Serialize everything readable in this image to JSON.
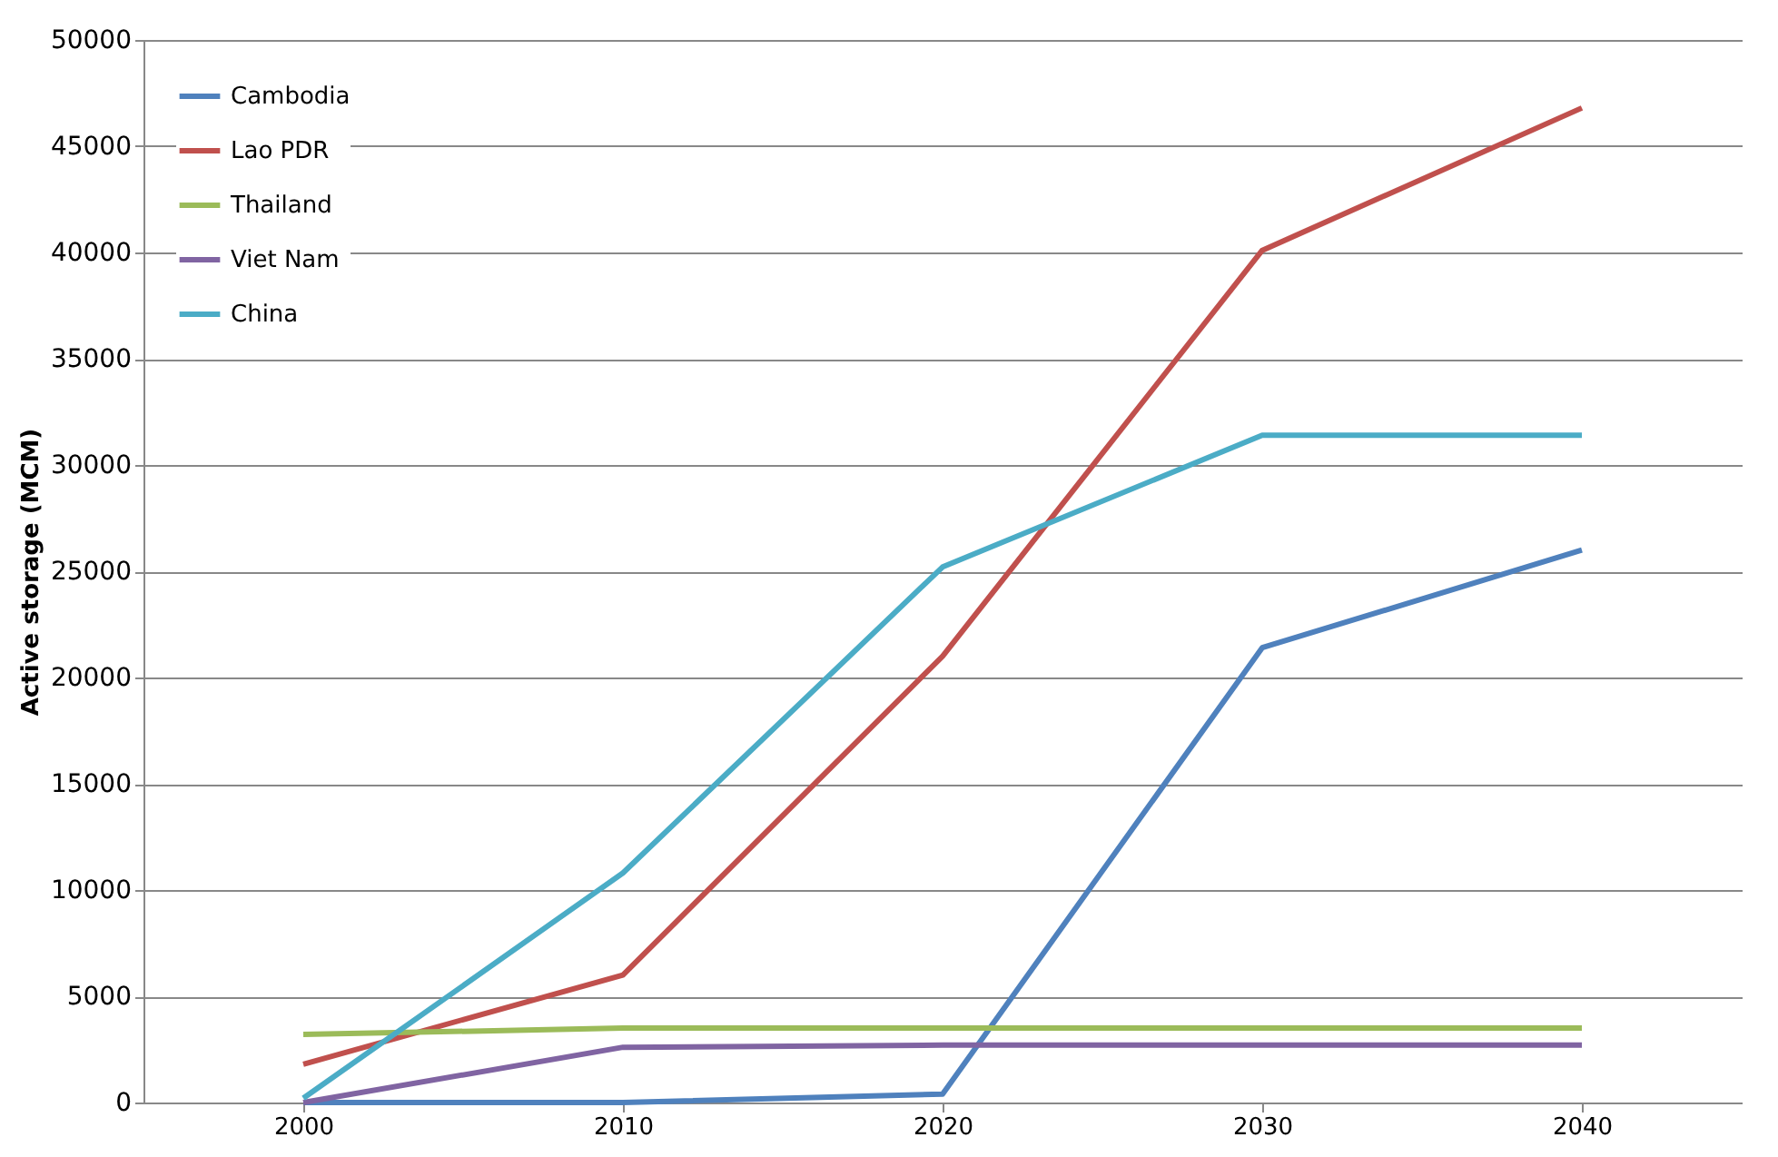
{
  "chart_data": {
    "type": "line",
    "ylabel": "Active storage (MCM)",
    "categories": [
      "2000",
      "2010",
      "2020",
      "2030",
      "2040"
    ],
    "ylim": [
      0,
      50000
    ],
    "yticks": [
      0,
      5000,
      10000,
      15000,
      20000,
      25000,
      30000,
      35000,
      40000,
      45000,
      50000
    ],
    "grid": "y",
    "legend": "top left",
    "marker": "none",
    "line_style": "solid",
    "series": [
      {
        "name": "Cambodia",
        "color": "#4f81bd",
        "values": [
          0,
          0,
          400,
          21400,
          26000
        ]
      },
      {
        "name": "Lao PDR",
        "color": "#c0504d",
        "values": [
          1800,
          6000,
          21000,
          40100,
          46800
        ]
      },
      {
        "name": "Thailand",
        "color": "#9bbb59",
        "values": [
          3200,
          3500,
          3500,
          3500,
          3500
        ]
      },
      {
        "name": "Viet Nam",
        "color": "#8064a2",
        "values": [
          0,
          2600,
          2700,
          2700,
          2700
        ]
      },
      {
        "name": "China",
        "color": "#4bacc6",
        "values": [
          200,
          10800,
          25200,
          31400,
          31400
        ]
      }
    ]
  }
}
